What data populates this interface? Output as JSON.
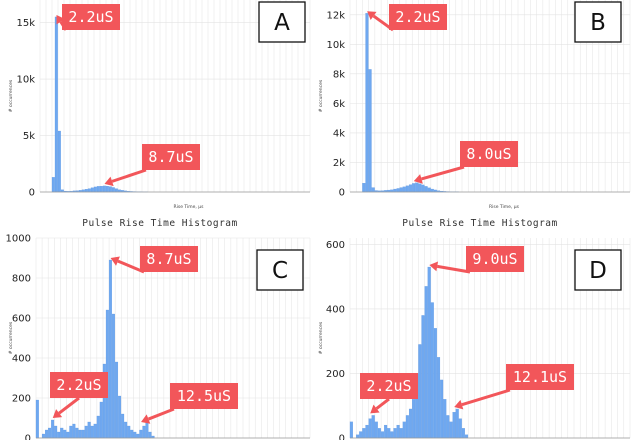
{
  "colors": {
    "bar": "#6fa8f0",
    "bar_stroke": "#5b94de",
    "grid": "#e3e3e3",
    "axis_text": "#222222",
    "callout_fill": "#f2565a",
    "callout_text": "#ffffff",
    "arrow": "#f2565a",
    "badge_border": "#111111"
  },
  "chart_data": [
    {
      "type": "bar",
      "panel": "A",
      "title": "",
      "xlabel": "Rise Time, µs",
      "ylabel": "# occurrences",
      "x": [
        0,
        0.5,
        1,
        1.5,
        2,
        2.5,
        3,
        3.5,
        4,
        4.5,
        5,
        5.5,
        6,
        6.5,
        7,
        7.5,
        8,
        8.5,
        9,
        9.5,
        10,
        10.5,
        11,
        11.5,
        12,
        12.5,
        13,
        13.5,
        14,
        14.5,
        15,
        15.5,
        16,
        16.5,
        17,
        17.5,
        18,
        18.5,
        19,
        19.5,
        20,
        20.5,
        21,
        21.5,
        22,
        22.5,
        23,
        23.5,
        24,
        24.5,
        25,
        25.5,
        26,
        26.5,
        27,
        27.5,
        28,
        28.5,
        29,
        29.5,
        30,
        30.5,
        31,
        31.5,
        32,
        32.5,
        33,
        33.5,
        34,
        34.5,
        35,
        35.5,
        36,
        36.5,
        37,
        37.5,
        38,
        38.5,
        39,
        39.5,
        40,
        40.5,
        41,
        41.5,
        42,
        42.5,
        43,
        43.5,
        44,
        44.5
      ],
      "values": [
        0,
        0,
        0,
        0,
        1300,
        15500,
        5400,
        200,
        80,
        60,
        70,
        100,
        120,
        150,
        200,
        250,
        300,
        380,
        450,
        500,
        520,
        540,
        520,
        480,
        400,
        300,
        200,
        150,
        100,
        70,
        50,
        40,
        30,
        20,
        10,
        10,
        0,
        0,
        0,
        0,
        0,
        0,
        0,
        0,
        0,
        0,
        0,
        0,
        0,
        0,
        0,
        0,
        0,
        0,
        0,
        0,
        0,
        0,
        0,
        0,
        0,
        0,
        0,
        0,
        0,
        0,
        0,
        0,
        0,
        0,
        0,
        0,
        0,
        0,
        0,
        0,
        0,
        0,
        0,
        0,
        0,
        0,
        0,
        0,
        0,
        0,
        0,
        0,
        0,
        0
      ],
      "ylim": [
        0,
        17000
      ],
      "yticks": [
        {
          "v": 0,
          "label": "0"
        },
        {
          "v": 5000,
          "label": "5k"
        },
        {
          "v": 10000,
          "label": "10k"
        },
        {
          "v": 15000,
          "label": "15k"
        }
      ],
      "annotations": [
        {
          "text": "2.2uS",
          "x": 2.5,
          "y": 15500
        },
        {
          "text": "8.7uS",
          "x": 10.5,
          "y": 540
        }
      ]
    },
    {
      "type": "bar",
      "panel": "B",
      "title": "",
      "xlabel": "Rise Time, µs",
      "ylabel": "# occurrences",
      "x": [
        0,
        0.5,
        1,
        1.5,
        2,
        2.5,
        3,
        3.5,
        4,
        4.5,
        5,
        5.5,
        6,
        6.5,
        7,
        7.5,
        8,
        8.5,
        9,
        9.5,
        10,
        10.5,
        11,
        11.5,
        12,
        12.5,
        13,
        13.5,
        14,
        14.5,
        15,
        15.5,
        16,
        16.5,
        17,
        17.5,
        18,
        18.5,
        19,
        19.5,
        20,
        20.5,
        21,
        21.5,
        22,
        22.5,
        23,
        23.5,
        24,
        24.5,
        25,
        25.5,
        26,
        26.5,
        27,
        27.5,
        28,
        28.5,
        29,
        29.5,
        30,
        30.5,
        31,
        31.5,
        32,
        32.5,
        33,
        33.5,
        34,
        34.5,
        35,
        35.5,
        36,
        36.5,
        37,
        37.5,
        38,
        38.5,
        39,
        39.5,
        40,
        40.5,
        41,
        41.5,
        42,
        42.5,
        43,
        43.5,
        44,
        44.5
      ],
      "values": [
        0,
        0,
        0,
        0,
        600,
        12100,
        8300,
        300,
        100,
        80,
        90,
        110,
        130,
        150,
        200,
        240,
        300,
        350,
        420,
        500,
        580,
        620,
        560,
        480,
        380,
        280,
        200,
        140,
        90,
        60,
        40,
        30,
        20,
        10,
        10,
        0,
        0,
        0,
        0,
        0,
        0,
        0,
        0,
        0,
        0,
        0,
        0,
        0,
        0,
        0,
        0,
        0,
        0,
        0,
        0,
        0,
        0,
        0,
        0,
        0,
        0,
        0,
        0,
        0,
        0,
        0,
        0,
        0,
        0,
        0,
        0,
        0,
        0,
        0,
        0,
        0,
        0,
        0,
        0,
        0,
        0,
        0,
        0,
        0,
        0,
        0,
        0,
        0,
        0,
        0
      ],
      "ylim": [
        0,
        13000
      ],
      "yticks": [
        {
          "v": 0,
          "label": "0"
        },
        {
          "v": 2000,
          "label": "2k"
        },
        {
          "v": 4000,
          "label": "4k"
        },
        {
          "v": 6000,
          "label": "6k"
        },
        {
          "v": 8000,
          "label": "8k"
        },
        {
          "v": 10000,
          "label": "10k"
        },
        {
          "v": 12000,
          "label": "12k"
        }
      ],
      "annotations": [
        {
          "text": "2.2uS",
          "x": 2.5,
          "y": 12100
        },
        {
          "text": "8.0uS",
          "x": 10,
          "y": 600
        }
      ]
    },
    {
      "type": "bar",
      "panel": "C",
      "title": "Pulse Rise Time Histogram",
      "xlabel": "",
      "ylabel": "# occurrences",
      "x": [
        0,
        0.5,
        1,
        1.5,
        2,
        2.5,
        3,
        3.5,
        4,
        4.5,
        5,
        5.5,
        6,
        6.5,
        7,
        7.5,
        8,
        8.5,
        9,
        9.5,
        10,
        10.5,
        11,
        11.5,
        12,
        12.5,
        13,
        13.5,
        14,
        14.5,
        15,
        15.5,
        16,
        16.5,
        17,
        17.5,
        18,
        18.5,
        19,
        19.5,
        20,
        20.5,
        21,
        21.5,
        22,
        22.5,
        23,
        23.5,
        24,
        24.5,
        25,
        25.5,
        26,
        26.5,
        27,
        27.5,
        28,
        28.5,
        29,
        29.5,
        30,
        30.5,
        31,
        31.5,
        32,
        32.5,
        33,
        33.5,
        34,
        34.5,
        35,
        35.5,
        36,
        36.5,
        37,
        37.5,
        38,
        38.5,
        39,
        39.5,
        40,
        40.5,
        41,
        41.5,
        42,
        42.5,
        43,
        43.5,
        44,
        44.5
      ],
      "values": [
        190,
        0,
        20,
        40,
        50,
        90,
        60,
        30,
        50,
        40,
        30,
        60,
        70,
        50,
        40,
        40,
        60,
        80,
        60,
        70,
        110,
        180,
        370,
        640,
        890,
        620,
        380,
        210,
        120,
        80,
        60,
        40,
        30,
        20,
        40,
        60,
        80,
        30,
        10,
        0,
        0,
        0,
        0,
        0,
        0,
        0,
        0,
        0,
        0,
        0,
        0,
        0,
        0,
        0,
        0,
        0,
        0,
        0,
        0,
        0,
        0,
        0,
        0,
        0,
        0,
        0,
        0,
        0,
        0,
        0,
        0,
        0,
        0,
        0,
        0,
        0,
        0,
        0,
        0,
        0,
        0,
        0,
        0,
        0,
        0,
        0,
        0,
        0,
        0,
        0
      ],
      "ylim": [
        0,
        1000
      ],
      "yticks": [
        {
          "v": 0,
          "label": "0"
        },
        {
          "v": 200,
          "label": "200"
        },
        {
          "v": 400,
          "label": "400"
        },
        {
          "v": 600,
          "label": "600"
        },
        {
          "v": 800,
          "label": "800"
        },
        {
          "v": 1000,
          "label": "1000"
        }
      ],
      "annotations": [
        {
          "text": "8.7uS",
          "x": 12,
          "y": 890
        },
        {
          "text": "2.2uS",
          "x": 2.5,
          "y": 90
        },
        {
          "text": "12.5uS",
          "x": 17,
          "y": 70
        }
      ]
    },
    {
      "type": "bar",
      "panel": "D",
      "title": "Pulse Rise Time Histogram",
      "xlabel": "",
      "ylabel": "# occurrences",
      "x": [
        0,
        0.5,
        1,
        1.5,
        2,
        2.5,
        3,
        3.5,
        4,
        4.5,
        5,
        5.5,
        6,
        6.5,
        7,
        7.5,
        8,
        8.5,
        9,
        9.5,
        10,
        10.5,
        11,
        11.5,
        12,
        12.5,
        13,
        13.5,
        14,
        14.5,
        15,
        15.5,
        16,
        16.5,
        17,
        17.5,
        18,
        18.5,
        19,
        19.5,
        20,
        20.5,
        21,
        21.5,
        22,
        22.5,
        23,
        23.5,
        24,
        24.5,
        25,
        25.5,
        26,
        26.5,
        27,
        27.5,
        28,
        28.5,
        29,
        29.5,
        30,
        30.5,
        31,
        31.5,
        32,
        32.5,
        33,
        33.5,
        34,
        34.5,
        35,
        35.5,
        36,
        36.5,
        37,
        37.5,
        38,
        38.5,
        39,
        39.5,
        40,
        40.5,
        41,
        41.5,
        42,
        42.5,
        43,
        43.5,
        44,
        44.5
      ],
      "values": [
        50,
        0,
        10,
        20,
        30,
        40,
        60,
        70,
        50,
        30,
        20,
        40,
        30,
        20,
        30,
        40,
        30,
        50,
        70,
        90,
        120,
        200,
        290,
        380,
        470,
        530,
        420,
        340,
        250,
        180,
        120,
        70,
        50,
        80,
        90,
        60,
        30,
        10,
        0,
        0,
        0,
        0,
        0,
        0,
        0,
        0,
        0,
        0,
        0,
        0,
        0,
        0,
        0,
        0,
        0,
        0,
        0,
        0,
        0,
        0,
        0,
        0,
        0,
        0,
        0,
        0,
        0,
        0,
        0,
        0,
        0,
        0,
        0,
        0,
        0,
        0,
        0,
        0,
        0,
        0,
        0,
        0,
        0,
        0,
        0,
        0,
        0,
        0,
        0,
        0
      ],
      "ylim": [
        0,
        620
      ],
      "yticks": [
        {
          "v": 0,
          "label": "0"
        },
        {
          "v": 200,
          "label": "200"
        },
        {
          "v": 400,
          "label": "400"
        },
        {
          "v": 600,
          "label": "600"
        }
      ],
      "annotations": [
        {
          "text": "9.0uS",
          "x": 12.5,
          "y": 530
        },
        {
          "text": "2.2uS",
          "x": 3,
          "y": 70
        },
        {
          "text": "12.1uS",
          "x": 16.5,
          "y": 90
        }
      ]
    }
  ]
}
